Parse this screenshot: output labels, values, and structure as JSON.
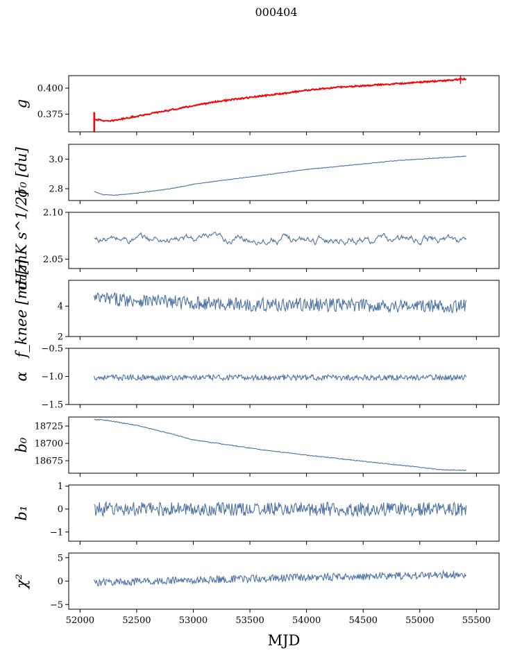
{
  "title": "000404",
  "xlabel": "MJD",
  "colors": {
    "series": "#4c72a4",
    "fit": "#ff0000"
  },
  "chart_data": {
    "type": "line",
    "title": "000404",
    "xlabel": "MJD",
    "xlim": [
      51900,
      55700
    ],
    "xticks": [
      52000,
      52500,
      53000,
      53500,
      54000,
      54500,
      55000,
      55500
    ],
    "xtick_labels": [
      "52000",
      "52500",
      "53000",
      "53500",
      "54000",
      "54500",
      "55000",
      "55500"
    ],
    "x_range": [
      52125,
      55410
    ],
    "panels": [
      {
        "id": "g",
        "ylabel": "g",
        "ylim": [
          0.358,
          0.412
        ],
        "yticks": [
          0.375,
          0.4
        ],
        "ytick_labels": [
          "0.375",
          "0.400"
        ],
        "series": [
          {
            "name": "g",
            "color": "#4c72a4",
            "x": [
              52125,
              52200,
              52250,
              52400,
              52600,
              52800,
              53000,
              53200,
              53500,
              53800,
              54000,
              54300,
              54600,
              54900,
              55200,
              55410
            ],
            "y": [
              0.37,
              0.369,
              0.368,
              0.371,
              0.375,
              0.379,
              0.383,
              0.387,
              0.391,
              0.395,
              0.398,
              0.401,
              0.403,
              0.405,
              0.407,
              0.409
            ],
            "noise": 0.0006
          },
          {
            "name": "fit",
            "color": "#ff0000",
            "x": [
              52125,
              52200,
              52250,
              52400,
              52600,
              52800,
              53000,
              53200,
              53500,
              53800,
              54000,
              54300,
              54600,
              54900,
              55200,
              55410
            ],
            "y": [
              0.37,
              0.369,
              0.368,
              0.371,
              0.375,
              0.379,
              0.383,
              0.387,
              0.391,
              0.395,
              0.398,
              0.401,
              0.403,
              0.405,
              0.407,
              0.409
            ],
            "noise": 0.0008
          }
        ]
      },
      {
        "id": "sigma0_du",
        "ylabel": "σ₀ [du]",
        "ylim": [
          2.72,
          3.1
        ],
        "yticks": [
          2.8,
          3.0
        ],
        "ytick_labels": [
          "2.8",
          "3.0"
        ],
        "series": [
          {
            "name": "sigma0_du",
            "color": "#4c72a4",
            "x": [
              52125,
              52200,
              52300,
              52500,
              52800,
              53000,
              53300,
              53600,
              54000,
              54400,
              54800,
              55200,
              55410
            ],
            "y": [
              2.78,
              2.76,
              2.755,
              2.77,
              2.8,
              2.83,
              2.86,
              2.89,
              2.93,
              2.96,
              2.99,
              3.01,
              3.02
            ],
            "noise": 0.002
          }
        ]
      },
      {
        "id": "sigma0_mk",
        "ylabel": "σ₀[mK s^1/2]",
        "ylim": [
          2.04,
          2.1
        ],
        "yticks": [
          2.05,
          2.1
        ],
        "ytick_labels": [
          "2.05",
          "2.10"
        ],
        "series": [
          {
            "name": "sigma0_mk",
            "color": "#4c72a4",
            "x": [
              52125,
              55410
            ],
            "y": [
              2.071,
              2.071
            ],
            "noise": 0.005
          }
        ]
      },
      {
        "id": "fknee",
        "ylabel": "f_knee [mHz]",
        "ylim": [
          2,
          5.7
        ],
        "yticks": [
          2,
          4
        ],
        "ytick_labels": [
          "2",
          "4"
        ],
        "series": [
          {
            "name": "fknee",
            "color": "#4c72a4",
            "x": [
              52125,
              52500,
              53000,
              53500,
              54000,
              55000,
              55410
            ],
            "y": [
              4.5,
              4.4,
              4.2,
              4.1,
              4.1,
              4.0,
              4.0
            ],
            "noise": 0.45
          }
        ]
      },
      {
        "id": "alpha",
        "ylabel": "α",
        "ylim": [
          -1.5,
          -0.5
        ],
        "yticks": [
          -1.5,
          -1.0,
          -0.5
        ],
        "ytick_labels": [
          "−1.5",
          "−1.0",
          "−0.5"
        ],
        "series": [
          {
            "name": "alpha",
            "color": "#4c72a4",
            "x": [
              52125,
              55410
            ],
            "y": [
              -1.02,
              -1.02
            ],
            "noise": 0.05
          }
        ]
      },
      {
        "id": "b0",
        "ylabel": "b₀",
        "ylim": [
          18657,
          18738
        ],
        "yticks": [
          18675,
          18700,
          18725
        ],
        "ytick_labels": [
          "18675",
          "18700",
          "18725"
        ],
        "series": [
          {
            "name": "b0",
            "color": "#4c72a4",
            "x": [
              52125,
              52200,
              52500,
              52800,
              53000,
              53300,
              53600,
              54000,
              54400,
              54800,
              55200,
              55410
            ],
            "y": [
              18734,
              18734,
              18726,
              18714,
              18705,
              18698,
              18691,
              18683,
              18676,
              18669,
              18662,
              18661
            ],
            "noise": 0.6
          }
        ]
      },
      {
        "id": "b1",
        "ylabel": "b₁",
        "ylim": [
          -1.4,
          1.05
        ],
        "yticks": [
          -1,
          0,
          1
        ],
        "ytick_labels": [
          "−1",
          "0",
          "1"
        ],
        "series": [
          {
            "name": "b1",
            "color": "#4c72a4",
            "x": [
              52125,
              55410
            ],
            "y": [
              0,
              0
            ],
            "noise": 0.3
          }
        ]
      },
      {
        "id": "chi2",
        "ylabel": "χ²",
        "ylim": [
          -6,
          6
        ],
        "yticks": [
          -5,
          0,
          5
        ],
        "ytick_labels": [
          "−5",
          "0",
          "5"
        ],
        "series": [
          {
            "name": "chi2",
            "color": "#4c72a4",
            "x": [
              52125,
              53000,
              54000,
              55000,
              55410
            ],
            "y": [
              -0.3,
              0.2,
              0.8,
              1.2,
              1.5
            ],
            "noise": 0.8
          }
        ]
      }
    ]
  }
}
